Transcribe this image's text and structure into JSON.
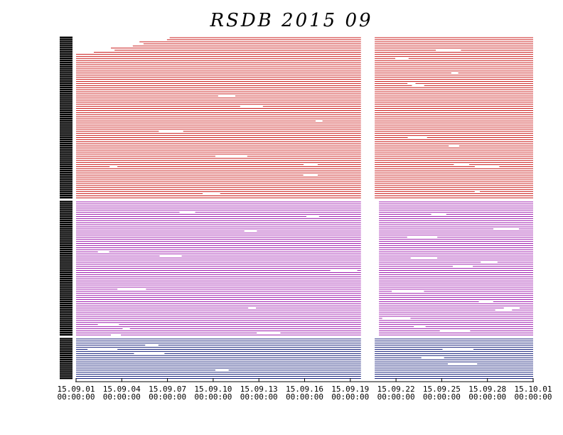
{
  "chart_data": {
    "type": "timeline",
    "title": "RSDB  2015  09",
    "x_ticks": [
      {
        "date": "15.09.01",
        "time": "00:00:00"
      },
      {
        "date": "15.09.04",
        "time": "00:00:00"
      },
      {
        "date": "15.09.07",
        "time": "00:00:00"
      },
      {
        "date": "15.09.10",
        "time": "00:00:00"
      },
      {
        "date": "15.09.13",
        "time": "00:00:00"
      },
      {
        "date": "15.09.16",
        "time": "00:00:00"
      },
      {
        "date": "15.09.19",
        "time": "00:00:00"
      },
      {
        "date": "15.09.22",
        "time": "00:00:00"
      },
      {
        "date": "15.09.25",
        "time": "00:00:00"
      },
      {
        "date": "15.09.28",
        "time": "00:00:00"
      },
      {
        "date": "15.10.01",
        "time": "00:00:00"
      }
    ],
    "x_range_days": [
      0,
      30
    ],
    "data_gap_days": [
      18.7,
      19.6
    ],
    "groups": [
      {
        "color": "#cc1f1f",
        "row_count": 78
      },
      {
        "color": "#a020b0",
        "row_count": 65
      },
      {
        "color": "#1a237e",
        "row_count": 20
      }
    ],
    "grid": false
  }
}
